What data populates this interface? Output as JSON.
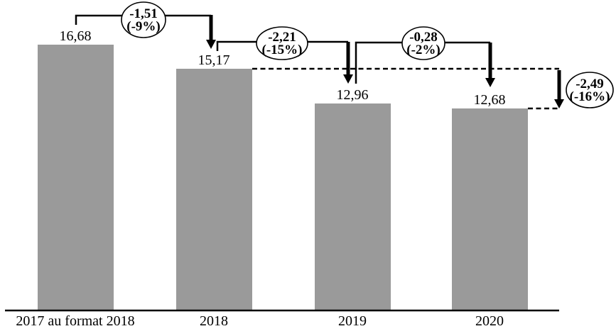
{
  "chart_data": {
    "type": "bar",
    "title": "",
    "xlabel": "",
    "ylabel": "",
    "grid": false,
    "legend": false,
    "ylim": [
      0,
      18
    ],
    "categories": [
      "2017 au format 2018",
      "2018",
      "2019",
      "2020"
    ],
    "values": [
      16.68,
      15.17,
      12.96,
      12.68
    ],
    "value_labels": [
      "16,68",
      "15,17",
      "12,96",
      "12,68"
    ],
    "bar_color": "#9a9a9a",
    "line_color": "#000000",
    "annotations": [
      {
        "from": "2017 au format 2018",
        "to": "2018",
        "delta_label": "-1,51",
        "pct_label": "(-9%)",
        "style": "step-arrow"
      },
      {
        "from": "2018",
        "to": "2019",
        "delta_label": "-2,21",
        "pct_label": "(-15%)",
        "style": "step-arrow"
      },
      {
        "from": "2019",
        "to": "2020",
        "delta_label": "-0,28",
        "pct_label": "(-2%)",
        "style": "step-arrow"
      },
      {
        "from": "2018",
        "to": "2020",
        "delta_label": "-2,49",
        "pct_label": "(-16%)",
        "style": "cumulative-dashed-arrow"
      }
    ]
  }
}
